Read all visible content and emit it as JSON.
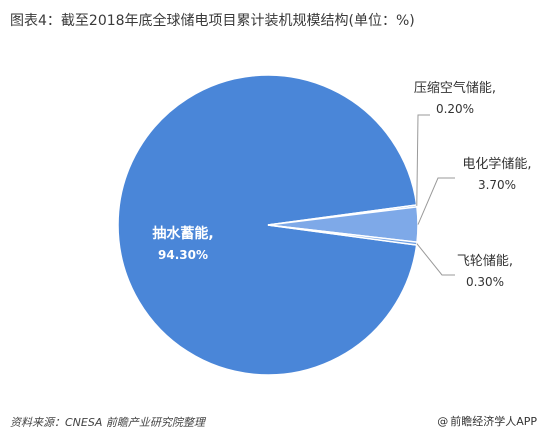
{
  "title": "图表4：截至2018年底全球储电项目累计装机规模结构(单位：%)",
  "footer": {
    "source": "资料来源：CNESA  前瞻产业研究院整理",
    "brand_symbol": "@",
    "brand": "前瞻经济学人APP"
  },
  "colors": {
    "pumped_hydro": "#4a86d8",
    "compressed_air": "#5b94df",
    "electrochemical": "#7ea9e8",
    "flywheel": "#6e9fe3",
    "slice_border": "#ffffff",
    "leader": "#9a9a9a"
  },
  "chart_data": {
    "type": "pie",
    "title": "图表4：截至2018年底全球储电项目累计装机规模结构(单位：%)",
    "slices": [
      {
        "label": "抽水蓄能,",
        "value": 94.3,
        "display": "94.30%"
      },
      {
        "label": "压缩空气储能,",
        "value": 0.2,
        "display": "0.20%"
      },
      {
        "label": "电化学储能,",
        "value": 3.7,
        "display": "3.70%"
      },
      {
        "label": "飞轮储能,",
        "value": 0.3,
        "display": "0.30%"
      }
    ]
  }
}
